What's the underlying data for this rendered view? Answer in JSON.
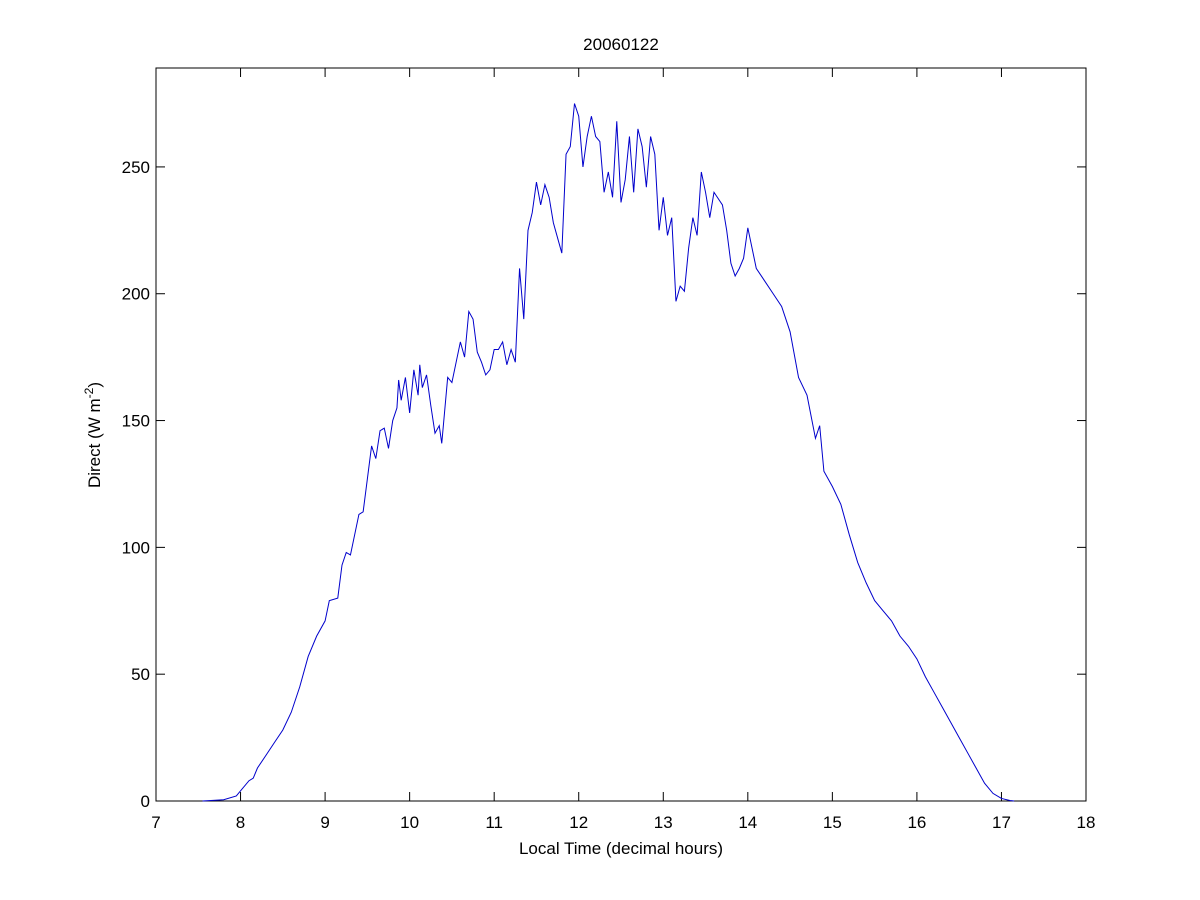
{
  "chart_data": {
    "type": "line",
    "title": "20060122",
    "xlabel": "Local Time (decimal hours)",
    "ylabel": [
      "Direct (W m",
      "-2",
      ")"
    ],
    "x": [
      7.55,
      7.8,
      7.95,
      8.0,
      8.1,
      8.15,
      8.2,
      8.3,
      8.4,
      8.5,
      8.6,
      8.7,
      8.8,
      8.9,
      9.0,
      9.05,
      9.15,
      9.2,
      9.25,
      9.3,
      9.4,
      9.45,
      9.5,
      9.55,
      9.6,
      9.65,
      9.7,
      9.75,
      9.8,
      9.85,
      9.87,
      9.9,
      9.95,
      10.0,
      10.05,
      10.1,
      10.12,
      10.15,
      10.2,
      10.25,
      10.3,
      10.35,
      10.38,
      10.45,
      10.5,
      10.6,
      10.65,
      10.7,
      10.75,
      10.8,
      10.85,
      10.9,
      10.95,
      11.0,
      11.05,
      11.1,
      11.15,
      11.2,
      11.25,
      11.3,
      11.35,
      11.4,
      11.45,
      11.5,
      11.55,
      11.6,
      11.65,
      11.7,
      11.75,
      11.8,
      11.85,
      11.9,
      11.95,
      12.0,
      12.05,
      12.1,
      12.15,
      12.2,
      12.25,
      12.3,
      12.35,
      12.4,
      12.45,
      12.5,
      12.55,
      12.6,
      12.65,
      12.7,
      12.75,
      12.8,
      12.85,
      12.9,
      12.95,
      13.0,
      13.05,
      13.1,
      13.15,
      13.2,
      13.25,
      13.3,
      13.35,
      13.4,
      13.45,
      13.5,
      13.55,
      13.6,
      13.7,
      13.75,
      13.8,
      13.85,
      13.9,
      13.95,
      14.0,
      14.1,
      14.2,
      14.3,
      14.4,
      14.5,
      14.6,
      14.7,
      14.8,
      14.85,
      14.9,
      15.0,
      15.1,
      15.2,
      15.3,
      15.4,
      15.5,
      15.6,
      15.7,
      15.8,
      15.9,
      16.0,
      16.1,
      16.2,
      16.3,
      16.4,
      16.5,
      16.6,
      16.7,
      16.8,
      16.9,
      17.0,
      17.1,
      17.15
    ],
    "series": [
      {
        "color": "#0000cc",
        "values": [
          0,
          0.5,
          2,
          4,
          8,
          9,
          13,
          18,
          23,
          28,
          35,
          45,
          57,
          65,
          71,
          79,
          80,
          93,
          98,
          97,
          113,
          114,
          127,
          140,
          135,
          146,
          147,
          139,
          150,
          155,
          166,
          158,
          167,
          153,
          170,
          160,
          172,
          163,
          168,
          156,
          145,
          148,
          141,
          167,
          165,
          181,
          175,
          193,
          190,
          177,
          173,
          168,
          170,
          178,
          178,
          181,
          172,
          178,
          173,
          210,
          190,
          225,
          232,
          244,
          235,
          243,
          238,
          228,
          222,
          216,
          255,
          258,
          275,
          270,
          250,
          262,
          270,
          262,
          260,
          240,
          248,
          238,
          268,
          236,
          245,
          262,
          240,
          265,
          258,
          242,
          262,
          255,
          225,
          238,
          223,
          230,
          197,
          203,
          201,
          218,
          230,
          223,
          248,
          240,
          230,
          240,
          235,
          225,
          212,
          207,
          210,
          214,
          226,
          210,
          205,
          200,
          195,
          185,
          167,
          160,
          143,
          148,
          130,
          124,
          117,
          105,
          94,
          86,
          79,
          75,
          71,
          65,
          61,
          56,
          49,
          43,
          37,
          31,
          25,
          19,
          13,
          7,
          3,
          1,
          0.2,
          0
        ]
      }
    ],
    "xlim": [
      7,
      18
    ],
    "xticks": [
      7,
      8,
      9,
      10,
      11,
      12,
      13,
      14,
      15,
      16,
      17,
      18
    ],
    "ylim": [
      0,
      289
    ],
    "yticks": [
      0,
      50,
      100,
      150,
      200,
      250
    ]
  }
}
